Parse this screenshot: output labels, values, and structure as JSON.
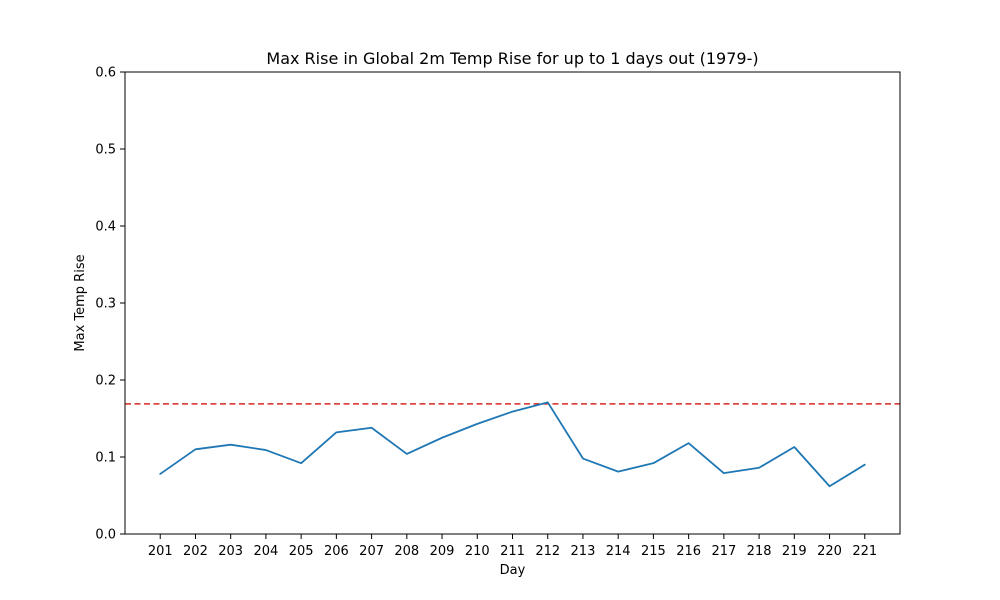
{
  "chart_data": {
    "type": "line",
    "title": "Max Rise in Global 2m Temp Rise for up to 1 days out (1979-)",
    "xlabel": "Day",
    "ylabel": "Max Temp Rise",
    "ylim": [
      0,
      0.6
    ],
    "yticks": [
      "0.0",
      "0.1",
      "0.2",
      "0.3",
      "0.4",
      "0.5",
      "0.6"
    ],
    "grid": false,
    "x": [
      201,
      202,
      203,
      204,
      205,
      206,
      207,
      208,
      209,
      210,
      211,
      212,
      213,
      214,
      215,
      216,
      217,
      218,
      219,
      220,
      221
    ],
    "series": [
      {
        "color": "#1f77b4",
        "values": [
          0.078,
          0.11,
          0.116,
          0.109,
          0.092,
          0.132,
          0.138,
          0.104,
          0.125,
          0.143,
          0.159,
          0.171,
          0.098,
          0.081,
          0.092,
          0.118,
          0.079,
          0.086,
          0.113,
          0.062,
          0.09
        ]
      }
    ],
    "reference_line": {
      "value": 0.169,
      "color": "#d62728",
      "style": "dashed"
    }
  }
}
